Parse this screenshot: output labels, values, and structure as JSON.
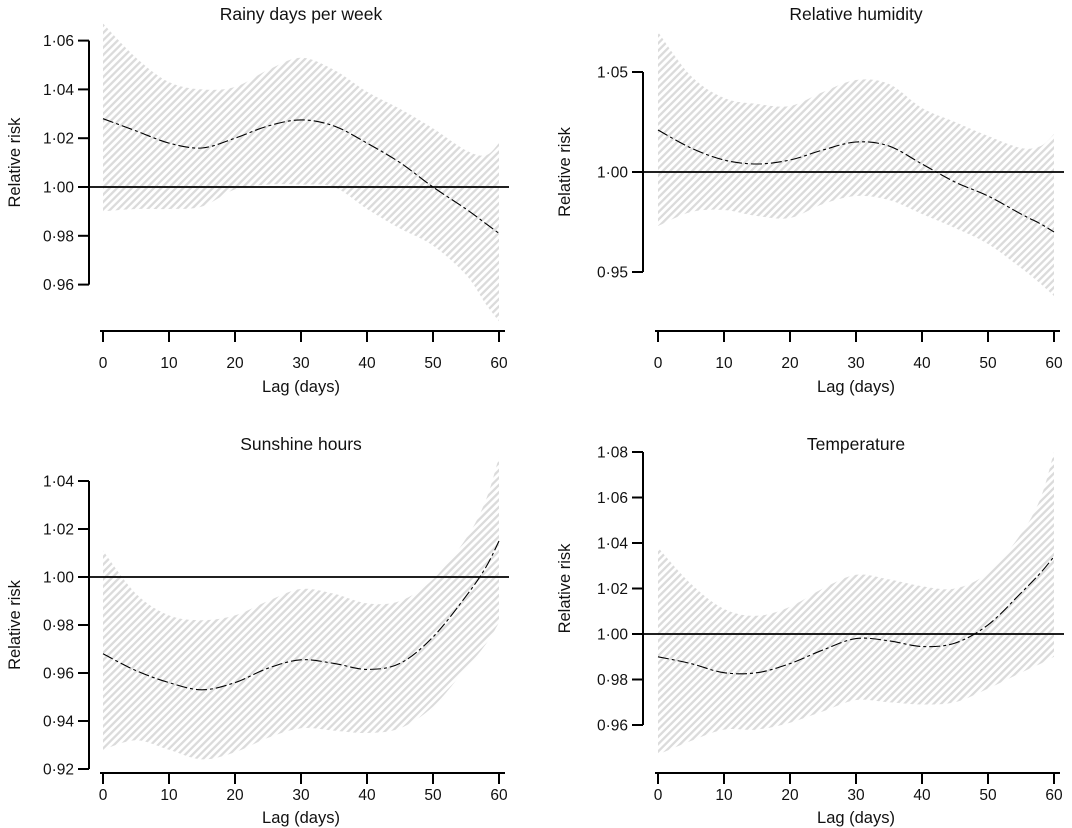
{
  "figure": {
    "ylabel": "Relative risk",
    "xlabel": "Lag (days)"
  },
  "colors": {
    "band_hatch": "#dbdbdb",
    "axis": "#000000",
    "curve": "#000000",
    "reference_line": "#000000"
  },
  "chart_data": [
    {
      "type": "line",
      "title": "Rainy days per week",
      "xlabel": "Lag (days)",
      "ylabel": "Relative risk",
      "xlim": [
        0,
        60
      ],
      "ylim": [
        0.945,
        1.067
      ],
      "ref_line_y": 1.0,
      "band_style": "diagonal-hatch",
      "x_ticks": [
        0,
        10,
        20,
        30,
        40,
        50,
        60
      ],
      "x_tick_labels": [
        "0",
        "10",
        "20",
        "30",
        "40",
        "50",
        "60"
      ],
      "y_ticks": [
        0.96,
        0.98,
        1.0,
        1.02,
        1.04,
        1.06
      ],
      "y_tick_labels": [
        "0·96",
        "0·98",
        "1·00",
        "1·02",
        "1·04",
        "1·06"
      ],
      "x": [
        0,
        5,
        10,
        15,
        20,
        25,
        30,
        35,
        40,
        45,
        50,
        55,
        58,
        60
      ],
      "series": [
        {
          "name": "relative-risk-estimate",
          "values": [
            1.028,
            1.023,
            1.018,
            1.016,
            1.02,
            1.025,
            1.0275,
            1.025,
            1.018,
            1.01,
            1.0,
            0.991,
            0.985,
            0.981
          ]
        },
        {
          "name": "upper-confidence-band",
          "values": [
            1.067,
            1.053,
            1.043,
            1.04,
            1.041,
            1.048,
            1.053,
            1.048,
            1.039,
            1.032,
            1.024,
            1.015,
            1.013,
            1.018
          ]
        },
        {
          "name": "lower-confidence-band",
          "values": [
            0.99,
            0.991,
            0.991,
            0.992,
            0.999,
            1.001,
            1.001,
            1.0,
            0.991,
            0.983,
            0.976,
            0.964,
            0.952,
            0.945
          ]
        }
      ]
    },
    {
      "type": "line",
      "title": "Relative humidity",
      "xlabel": "Lag (days)",
      "ylabel": "Relative risk",
      "xlim": [
        0,
        60
      ],
      "ylim": [
        0.93,
        1.07
      ],
      "ref_line_y": 1.0,
      "band_style": "diagonal-hatch",
      "x_ticks": [
        0,
        10,
        20,
        30,
        40,
        50,
        60
      ],
      "x_tick_labels": [
        "0",
        "10",
        "20",
        "30",
        "40",
        "50",
        "60"
      ],
      "y_ticks": [
        0.95,
        1.0,
        1.05
      ],
      "y_tick_labels": [
        "0·95",
        "1·00",
        "1·05"
      ],
      "x": [
        0,
        5,
        10,
        15,
        20,
        25,
        30,
        35,
        40,
        45,
        50,
        55,
        58,
        60
      ],
      "series": [
        {
          "name": "relative-risk-estimate",
          "values": [
            1.021,
            1.012,
            1.006,
            1.004,
            1.006,
            1.011,
            1.015,
            1.013,
            1.004,
            0.995,
            0.988,
            0.979,
            0.974,
            0.97
          ]
        },
        {
          "name": "upper-confidence-band",
          "values": [
            1.07,
            1.048,
            1.037,
            1.034,
            1.033,
            1.04,
            1.046,
            1.044,
            1.032,
            1.025,
            1.018,
            1.012,
            1.013,
            1.019
          ]
        },
        {
          "name": "lower-confidence-band",
          "values": [
            0.973,
            0.98,
            0.981,
            0.978,
            0.977,
            0.984,
            0.988,
            0.986,
            0.979,
            0.972,
            0.964,
            0.952,
            0.944,
            0.938
          ]
        }
      ]
    },
    {
      "type": "line",
      "title": "Sunshine hours",
      "xlabel": "Lag (days)",
      "ylabel": "Relative risk",
      "xlim": [
        0,
        60
      ],
      "ylim": [
        0.92,
        1.052
      ],
      "ref_line_y": 1.0,
      "band_style": "diagonal-hatch",
      "x_ticks": [
        0,
        10,
        20,
        30,
        40,
        50,
        60
      ],
      "x_tick_labels": [
        "0",
        "10",
        "20",
        "30",
        "40",
        "50",
        "60"
      ],
      "y_ticks": [
        0.92,
        0.94,
        0.96,
        0.98,
        1.0,
        1.02,
        1.04
      ],
      "y_tick_labels": [
        "0·92",
        "0·94",
        "0·96",
        "0·98",
        "1·00",
        "1·02",
        "1·04"
      ],
      "x": [
        0,
        5,
        10,
        15,
        20,
        25,
        30,
        35,
        40,
        45,
        50,
        55,
        58,
        60
      ],
      "series": [
        {
          "name": "relative-risk-estimate",
          "values": [
            0.968,
            0.961,
            0.956,
            0.953,
            0.956,
            0.962,
            0.9655,
            0.964,
            0.9615,
            0.964,
            0.975,
            0.992,
            1.004,
            1.015
          ]
        },
        {
          "name": "upper-confidence-band",
          "values": [
            1.011,
            0.993,
            0.984,
            0.982,
            0.984,
            0.99,
            0.995,
            0.993,
            0.989,
            0.99,
            0.999,
            1.016,
            1.032,
            1.05
          ]
        },
        {
          "name": "lower-confidence-band",
          "values": [
            0.928,
            0.932,
            0.928,
            0.924,
            0.927,
            0.933,
            0.937,
            0.936,
            0.935,
            0.937,
            0.946,
            0.962,
            0.972,
            0.981
          ]
        }
      ]
    },
    {
      "type": "line",
      "title": "Temperature",
      "xlabel": "Lag (days)",
      "ylabel": "Relative risk",
      "xlim": [
        0,
        60
      ],
      "ylim": [
        0.945,
        1.08
      ],
      "ref_line_y": 1.0,
      "band_style": "diagonal-hatch",
      "x_ticks": [
        0,
        10,
        20,
        30,
        40,
        50,
        60
      ],
      "x_tick_labels": [
        "0",
        "10",
        "20",
        "30",
        "40",
        "50",
        "60"
      ],
      "y_ticks": [
        0.96,
        0.98,
        1.0,
        1.02,
        1.04,
        1.06,
        1.08
      ],
      "y_tick_labels": [
        "0·96",
        "0·98",
        "1·00",
        "1·02",
        "1·04",
        "1·06",
        "1·08"
      ],
      "x": [
        0,
        5,
        10,
        15,
        20,
        25,
        30,
        35,
        40,
        45,
        50,
        55,
        58,
        60
      ],
      "series": [
        {
          "name": "relative-risk-estimate",
          "values": [
            0.99,
            0.987,
            0.983,
            0.983,
            0.987,
            0.993,
            0.998,
            0.997,
            0.9945,
            0.996,
            1.004,
            1.018,
            1.027,
            1.034
          ]
        },
        {
          "name": "upper-confidence-band",
          "values": [
            1.038,
            1.022,
            1.011,
            1.008,
            1.012,
            1.02,
            1.026,
            1.024,
            1.021,
            1.02,
            1.027,
            1.044,
            1.06,
            1.08
          ]
        },
        {
          "name": "lower-confidence-band",
          "values": [
            0.947,
            0.953,
            0.958,
            0.958,
            0.961,
            0.966,
            0.971,
            0.97,
            0.969,
            0.97,
            0.976,
            0.983,
            0.987,
            0.99
          ]
        }
      ]
    }
  ]
}
